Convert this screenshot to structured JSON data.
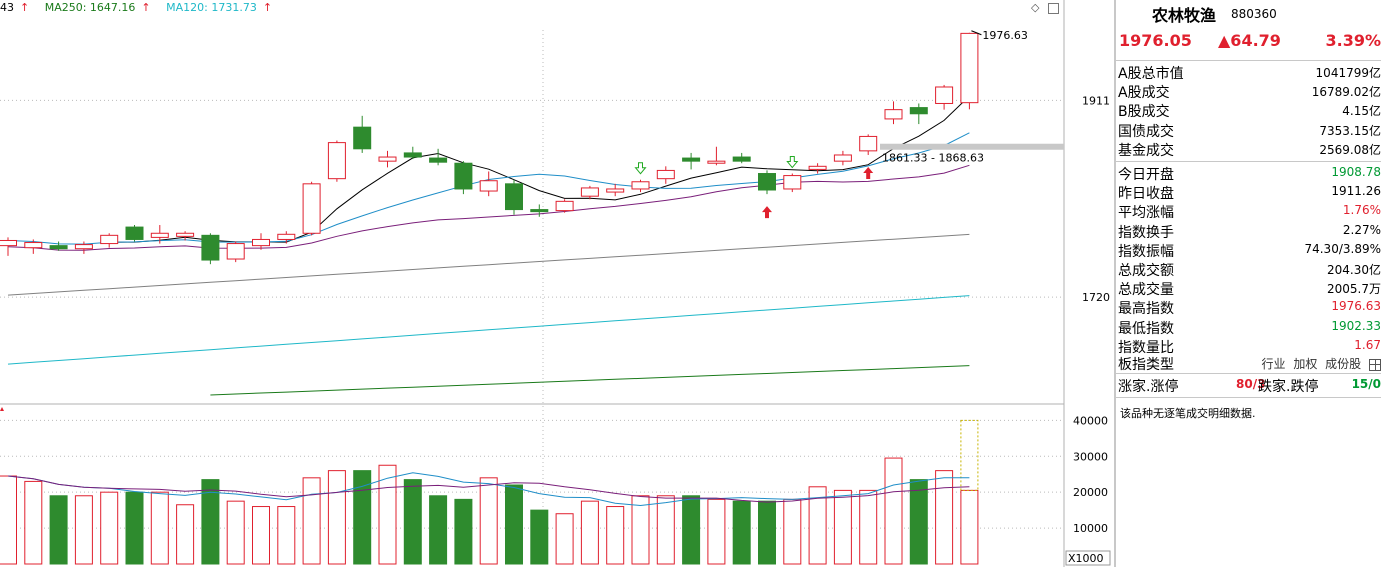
{
  "legend": {
    "ma_partial": "43",
    "ma250_label": "MA250: 1647.16",
    "ma120_label": "MA120: 1731.73",
    "arrow": "↑"
  },
  "axis": {
    "price_ticks": [
      "1911",
      "1720"
    ],
    "volume_ticks": [
      "40000",
      "30000",
      "20000",
      "10000"
    ],
    "volume_unit": "X1000"
  },
  "annotations": {
    "high_label": "1976.63",
    "range_label": "1861.33 - 1868.63"
  },
  "colors": {
    "up": "#e0202e",
    "down": "#2e8b2e",
    "ma_fast": "#000000",
    "ma_mid": "#1f8ec8",
    "ma_slow": "#7a1f7a",
    "ma_gray": "#808080",
    "ma120": "#1fb8c8",
    "ma250": "#1a7a1a"
  },
  "icons": {
    "diamond": "diamond-icon",
    "restore": "restore-icon"
  },
  "chart_data": {
    "type": "candlestick",
    "price_range": [
      1625,
      1990
    ],
    "volume_range": [
      0,
      44000
    ],
    "candles": [
      {
        "o": 1770,
        "h": 1778,
        "l": 1760,
        "c": 1775
      },
      {
        "o": 1768,
        "h": 1776,
        "l": 1762,
        "c": 1773
      },
      {
        "o": 1770,
        "h": 1774,
        "l": 1765,
        "c": 1767
      },
      {
        "o": 1767,
        "h": 1774,
        "l": 1762,
        "c": 1771
      },
      {
        "o": 1772,
        "h": 1782,
        "l": 1768,
        "c": 1780
      },
      {
        "o": 1788,
        "h": 1790,
        "l": 1774,
        "c": 1776
      },
      {
        "o": 1778,
        "h": 1790,
        "l": 1772,
        "c": 1782
      },
      {
        "o": 1779,
        "h": 1784,
        "l": 1775,
        "c": 1782
      },
      {
        "o": 1780,
        "h": 1782,
        "l": 1752,
        "c": 1756
      },
      {
        "o": 1757,
        "h": 1774,
        "l": 1754,
        "c": 1772
      },
      {
        "o": 1770,
        "h": 1782,
        "l": 1766,
        "c": 1776
      },
      {
        "o": 1776,
        "h": 1784,
        "l": 1772,
        "c": 1781
      },
      {
        "o": 1782,
        "h": 1832,
        "l": 1780,
        "c": 1830
      },
      {
        "o": 1835,
        "h": 1872,
        "l": 1832,
        "c": 1870
      },
      {
        "o": 1885,
        "h": 1896,
        "l": 1860,
        "c": 1864
      },
      {
        "o": 1852,
        "h": 1862,
        "l": 1846,
        "c": 1856
      },
      {
        "o": 1860,
        "h": 1866,
        "l": 1854,
        "c": 1856
      },
      {
        "o": 1855,
        "h": 1864,
        "l": 1848,
        "c": 1851
      },
      {
        "o": 1850,
        "h": 1852,
        "l": 1820,
        "c": 1825
      },
      {
        "o": 1823,
        "h": 1842,
        "l": 1818,
        "c": 1833
      },
      {
        "o": 1830,
        "h": 1834,
        "l": 1800,
        "c": 1805
      },
      {
        "o": 1805,
        "h": 1810,
        "l": 1798,
        "c": 1803
      },
      {
        "o": 1804,
        "h": 1815,
        "l": 1802,
        "c": 1813
      },
      {
        "o": 1818,
        "h": 1828,
        "l": 1815,
        "c": 1826
      },
      {
        "o": 1822,
        "h": 1830,
        "l": 1818,
        "c": 1825
      },
      {
        "o": 1825,
        "h": 1834,
        "l": 1822,
        "c": 1832
      },
      {
        "o": 1835,
        "h": 1847,
        "l": 1830,
        "c": 1843
      },
      {
        "o": 1855,
        "h": 1860,
        "l": 1844,
        "c": 1852
      },
      {
        "o": 1850,
        "h": 1866,
        "l": 1848,
        "c": 1852
      },
      {
        "o": 1856,
        "h": 1860,
        "l": 1850,
        "c": 1852
      },
      {
        "o": 1840,
        "h": 1843,
        "l": 1820,
        "c": 1824
      },
      {
        "o": 1825,
        "h": 1840,
        "l": 1822,
        "c": 1838
      },
      {
        "o": 1844,
        "h": 1850,
        "l": 1840,
        "c": 1847
      },
      {
        "o": 1852,
        "h": 1862,
        "l": 1848,
        "c": 1858
      },
      {
        "o": 1862,
        "h": 1878,
        "l": 1858,
        "c": 1876
      },
      {
        "o": 1893,
        "h": 1910,
        "l": 1888,
        "c": 1902
      },
      {
        "o": 1904,
        "h": 1908,
        "l": 1888,
        "c": 1898
      },
      {
        "o": 1908,
        "h": 1926,
        "l": 1902,
        "c": 1924
      },
      {
        "o": 1908.78,
        "h": 1976.63,
        "l": 1902.33,
        "c": 1976.05
      }
    ],
    "volume": [
      24.5,
      23,
      19,
      19,
      20,
      20,
      20,
      16.5,
      23.5,
      17.5,
      16,
      16,
      24,
      26,
      26,
      27.5,
      23.5,
      19,
      18,
      24,
      22,
      15,
      14,
      17.5,
      16,
      19,
      19,
      19,
      18,
      17.5,
      17.5,
      18,
      21.5,
      20.5,
      20.5,
      29.5,
      23.5,
      26,
      20.5
    ]
  },
  "panel": {
    "name": "农林牧渔",
    "code": "880360",
    "price": "1976.05",
    "change": "▲64.79",
    "pct": "3.39%",
    "rows1": [
      {
        "label": "A股总市值",
        "value": "1041799亿",
        "color": "black"
      },
      {
        "label": "A股成交",
        "value": "16789.02亿",
        "color": "black"
      },
      {
        "label": "B股成交",
        "value": "4.15亿",
        "color": "black"
      },
      {
        "label": "国债成交",
        "value": "7353.15亿",
        "color": "black"
      },
      {
        "label": "基金成交",
        "value": "2569.08亿",
        "color": "black"
      }
    ],
    "rows2": [
      {
        "label": "今日开盘",
        "value": "1908.78",
        "color": "green"
      },
      {
        "label": "昨日收盘",
        "value": "1911.26",
        "color": "black"
      },
      {
        "label": "平均涨幅",
        "value": "1.76%",
        "color": "red"
      },
      {
        "label": "指数换手",
        "value": "2.27%",
        "color": "black"
      },
      {
        "label": "指数振幅",
        "value": "74.30/3.89%",
        "color": "black"
      },
      {
        "label": "总成交额",
        "value": "204.30亿",
        "color": "black"
      },
      {
        "label": "总成交量",
        "value": "2005.7万",
        "color": "black"
      },
      {
        "label": "最高指数",
        "value": "1976.63",
        "color": "red"
      },
      {
        "label": "最低指数",
        "value": "1902.33",
        "color": "green"
      },
      {
        "label": "指数量比",
        "value": "1.67",
        "color": "red"
      }
    ],
    "type_label": "板指类型",
    "type_tags": [
      "行业",
      "加权",
      "成份股"
    ],
    "limit": {
      "up_label": "涨家.涨停",
      "up_value": "80/3",
      "down_label": "跌家.跌停",
      "down_value": "15/0"
    },
    "note": "该品种无逐笔成交明细数据."
  }
}
